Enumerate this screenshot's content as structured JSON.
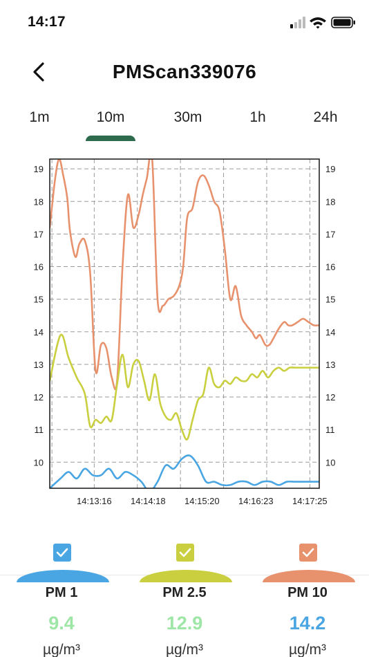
{
  "status": {
    "time": "14:17"
  },
  "header": {
    "title": "PMScan339076"
  },
  "tabs": [
    {
      "label": "1m"
    },
    {
      "label": "10m",
      "selected": true
    },
    {
      "label": "30m"
    },
    {
      "label": "1h"
    },
    {
      "label": "24h"
    }
  ],
  "colors": {
    "pm1": "#4aa6e2",
    "pm25": "#c9cf3e",
    "pm10": "#e8926d",
    "tab_indicator": "#2e6b4c"
  },
  "chart_data": {
    "type": "line",
    "title": "",
    "xlabel": "",
    "ylabel": "",
    "ylim": [
      9.2,
      19.3
    ],
    "y_ticks": [
      10,
      11,
      12,
      13,
      14,
      15,
      16,
      17,
      18,
      19
    ],
    "x_ticks": [
      "14:13:16",
      "14:14:18",
      "14:15:20",
      "14:16:23",
      "14:17:25"
    ],
    "grid": true,
    "series": [
      {
        "key": "pm10",
        "x": [
          0,
          2,
          3.5,
          5,
          6.5,
          7.5,
          9.5,
          11,
          13,
          15,
          17,
          19,
          21,
          23,
          25,
          27,
          29,
          31,
          33,
          34.5,
          36,
          38,
          40,
          42,
          44,
          46,
          48,
          49.5,
          51,
          53,
          55,
          57,
          59,
          61,
          63,
          65,
          67,
          69,
          71,
          73,
          75,
          76.5,
          78,
          80,
          81.5,
          83,
          85,
          87,
          88.5,
          90,
          92,
          94,
          96,
          98,
          100
        ],
        "y": [
          17.2,
          18.7,
          19.3,
          18.8,
          18.1,
          17.1,
          16.3,
          16.7,
          16.8,
          15.8,
          12.8,
          13.6,
          13.5,
          12.6,
          12.5,
          16.0,
          18.2,
          17.2,
          17.6,
          18.2,
          18.7,
          19.3,
          15.0,
          14.8,
          15.0,
          15.1,
          15.4,
          16.0,
          17.5,
          17.8,
          18.6,
          18.8,
          18.5,
          18.0,
          17.7,
          16.5,
          15.0,
          15.4,
          14.5,
          14.2,
          14.0,
          13.8,
          13.9,
          13.6,
          13.6,
          13.8,
          14.1,
          14.3,
          14.2,
          14.2,
          14.3,
          14.4,
          14.3,
          14.2,
          14.2
        ]
      },
      {
        "key": "pm25",
        "x": [
          0,
          4,
          7,
          10,
          13,
          15,
          17,
          19,
          21,
          23,
          25,
          27,
          29,
          31,
          33,
          35,
          37,
          39,
          41,
          43,
          45,
          47,
          49,
          51,
          53,
          55,
          57,
          59,
          61,
          63,
          65,
          67,
          69,
          71,
          73,
          75,
          77,
          79,
          81,
          83,
          85,
          87,
          89,
          91,
          93,
          95,
          97,
          100
        ],
        "y": [
          12.5,
          13.9,
          13.2,
          12.6,
          12.1,
          11.1,
          11.3,
          11.2,
          11.4,
          11.3,
          12.4,
          13.3,
          12.3,
          13.0,
          13.1,
          12.5,
          11.9,
          12.7,
          11.8,
          11.4,
          11.3,
          11.5,
          11.0,
          10.7,
          11.3,
          11.9,
          12.1,
          12.9,
          12.4,
          12.3,
          12.5,
          12.4,
          12.6,
          12.5,
          12.5,
          12.7,
          12.6,
          12.8,
          12.6,
          12.8,
          12.9,
          12.8,
          12.9,
          12.9,
          12.9,
          12.9,
          12.9,
          12.9
        ]
      },
      {
        "key": "pm1",
        "x": [
          0,
          4,
          7,
          10,
          13,
          16,
          19,
          22,
          25,
          28,
          31,
          34,
          37,
          40,
          43,
          46,
          49,
          52,
          55,
          58,
          61,
          64,
          67,
          70,
          73,
          76,
          79,
          82,
          85,
          88,
          91,
          94,
          97,
          100
        ],
        "y": [
          9.2,
          9.5,
          9.7,
          9.5,
          9.8,
          9.6,
          9.6,
          9.8,
          9.5,
          9.7,
          9.6,
          9.4,
          9.1,
          9.4,
          9.9,
          9.8,
          10.1,
          10.2,
          9.9,
          9.4,
          9.4,
          9.3,
          9.3,
          9.4,
          9.4,
          9.3,
          9.4,
          9.4,
          9.3,
          9.4,
          9.4,
          9.4,
          9.4,
          9.4
        ]
      }
    ]
  },
  "legend": [
    {
      "key": "pm1",
      "label": "PM 1",
      "value": "9.4",
      "value_color": "#9ee6a6",
      "unit": "µg/m³",
      "checked": true,
      "color": "#4aa6e2"
    },
    {
      "key": "pm25",
      "label": "PM 2.5",
      "value": "12.9",
      "value_color": "#9ee6a6",
      "unit": "µg/m³",
      "checked": true,
      "color": "#c9cf3e"
    },
    {
      "key": "pm10",
      "label": "PM 10",
      "value": "14.2",
      "value_color": "#4aa6e2",
      "unit": "µg/m³",
      "checked": true,
      "color": "#e8926d"
    }
  ]
}
